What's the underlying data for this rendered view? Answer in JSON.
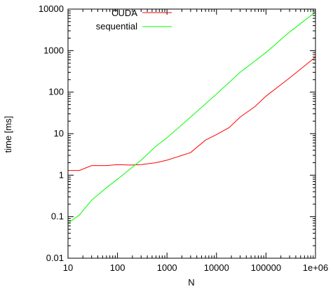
{
  "chart_data": {
    "type": "line",
    "title": "",
    "xlabel": "N",
    "ylabel": "time [ms]",
    "xscale": "log",
    "yscale": "log",
    "xlim": [
      10,
      1000000
    ],
    "ylim": [
      0.01,
      10000
    ],
    "grid": false,
    "legend_position": "top-left",
    "xticks": [
      {
        "value": 10,
        "label": "10"
      },
      {
        "value": 100,
        "label": "100"
      },
      {
        "value": 1000,
        "label": "1000"
      },
      {
        "value": 10000,
        "label": "10000"
      },
      {
        "value": 100000,
        "label": "100000"
      },
      {
        "value": 1000000,
        "label": "1e+06"
      }
    ],
    "yticks": [
      {
        "value": 0.01,
        "label": "0.01"
      },
      {
        "value": 0.1,
        "label": "0.1"
      },
      {
        "value": 1,
        "label": "1"
      },
      {
        "value": 10,
        "label": "10"
      },
      {
        "value": 100,
        "label": "100"
      },
      {
        "value": 1000,
        "label": "1000"
      },
      {
        "value": 10000,
        "label": "10000"
      }
    ],
    "series": [
      {
        "name": "CUDA",
        "color": "#ff0000",
        "points": [
          [
            10,
            1.3
          ],
          [
            17,
            1.3
          ],
          [
            30,
            1.7
          ],
          [
            60,
            1.7
          ],
          [
            100,
            1.8
          ],
          [
            180,
            1.75
          ],
          [
            300,
            1.8
          ],
          [
            600,
            2.0
          ],
          [
            1000,
            2.3
          ],
          [
            3000,
            3.5
          ],
          [
            6000,
            7
          ],
          [
            10000,
            9.5
          ],
          [
            18000,
            14
          ],
          [
            30000,
            25
          ],
          [
            60000,
            45
          ],
          [
            100000,
            80
          ],
          [
            300000,
            220
          ],
          [
            1000000,
            700
          ]
        ]
      },
      {
        "name": "sequential",
        "color": "#00ff00",
        "points": [
          [
            10,
            0.07
          ],
          [
            17,
            0.11
          ],
          [
            30,
            0.25
          ],
          [
            60,
            0.5
          ],
          [
            100,
            0.8
          ],
          [
            300,
            2.3
          ],
          [
            600,
            5
          ],
          [
            1000,
            8
          ],
          [
            3000,
            25
          ],
          [
            10000,
            90
          ],
          [
            30000,
            300
          ],
          [
            100000,
            900
          ],
          [
            300000,
            2800
          ],
          [
            1000000,
            8500
          ]
        ]
      }
    ]
  }
}
